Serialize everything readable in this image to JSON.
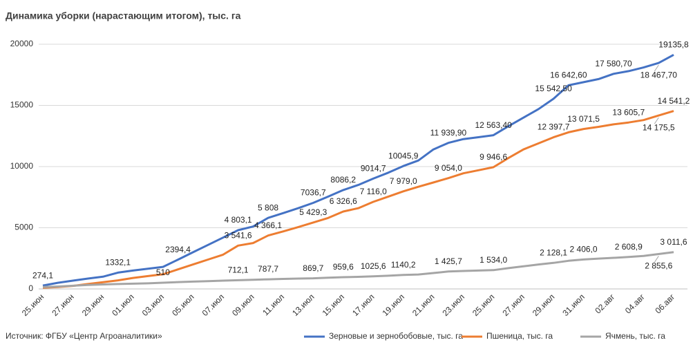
{
  "chart_data": {
    "type": "line",
    "title": "Динамика уборки (нарастающим итогом), тыс. га",
    "source": "Источник: ФГБУ «Центр Агроаналитики»",
    "categories": [
      "25.июн",
      null,
      "27.июн",
      null,
      "29.июн",
      null,
      "01.июл",
      null,
      "03.июл",
      null,
      "05.июл",
      null,
      "07.июл",
      null,
      "09.июл",
      null,
      "11.июл",
      null,
      "13.июл",
      null,
      "15.июл",
      null,
      "17.июл",
      null,
      "19.июл",
      null,
      "21.июл",
      null,
      "23.июл",
      null,
      "25.июл",
      null,
      "27.июл",
      null,
      "29.июл",
      null,
      "31.июл",
      null,
      "02.авг",
      null,
      "04.авг",
      null,
      "06.авг"
    ],
    "ylim": [
      0,
      20000
    ],
    "yticks": [
      0,
      5000,
      10000,
      15000,
      20000
    ],
    "grid": true,
    "legend": "bottom",
    "series": [
      {
        "name": "Зерновые и зернобобовые, тыс. га",
        "color": "#4472c4",
        "values": [
          274.1,
          500,
          680,
          850,
          1000,
          1332.1,
          1500,
          1650,
          1800,
          2394.4,
          3000,
          3600,
          4200,
          4803.1,
          5100,
          5808,
          6200,
          6600,
          7036.7,
          7550,
          8086.2,
          8500,
          9014.7,
          9500,
          10045.9,
          10500,
          11400,
          11939.9,
          12250,
          12400,
          12563.4,
          13300,
          14000,
          14700,
          15542.5,
          16642.6,
          16900,
          17150,
          17580.7,
          17800,
          18100,
          18467.7,
          19135.8
        ],
        "value_labels": [
          "274,1",
          null,
          null,
          null,
          null,
          "1332,1",
          null,
          null,
          null,
          "2394,4",
          null,
          null,
          null,
          "4 803,1",
          null,
          "5 808",
          null,
          null,
          "7036,7",
          null,
          "8086,2",
          null,
          "9014,7",
          null,
          "10045,9",
          null,
          null,
          "11 939,90",
          null,
          null,
          "12 563,40",
          null,
          null,
          null,
          "15 542,50",
          "16 642,60",
          null,
          null,
          "17 580,70",
          null,
          null,
          "18 467,70",
          "19135,8"
        ]
      },
      {
        "name": "Пшеница, тыс. га",
        "color": "#ed7d31",
        "values": [
          100,
          150,
          250,
          400,
          550,
          700,
          900,
          1050,
          1200,
          1600,
          2000,
          2400,
          2800,
          3541.6,
          3750,
          4366.1,
          4700,
          5050,
          5429.3,
          5800,
          6326.6,
          6600,
          7116.0,
          7550,
          7979.0,
          8350,
          8700,
          9054.0,
          9450,
          9700,
          9946.6,
          10700,
          11400,
          11900,
          12397.7,
          12800,
          13071.5,
          13250,
          13450,
          13605.7,
          13800,
          14175.5,
          14541.2
        ],
        "value_labels": [
          null,
          null,
          null,
          null,
          null,
          null,
          null,
          null,
          null,
          null,
          null,
          null,
          null,
          "3 541,6",
          null,
          "4 366,1",
          null,
          null,
          "5 429,3",
          null,
          "6 326,6",
          null,
          "7 116,0",
          null,
          "7 979,0",
          null,
          null,
          "9 054,0",
          null,
          null,
          "9 946,6",
          null,
          null,
          null,
          "12 397,7",
          null,
          "13 071,5",
          null,
          null,
          "13 605,7",
          null,
          "14 175,5",
          "14 541,2"
        ]
      },
      {
        "name": "Ячмень, тыс. га",
        "color": "#a5a5a5",
        "values": [
          150,
          200,
          260,
          320,
          370,
          400,
          430,
          460,
          510,
          560,
          600,
          640,
          680,
          712.1,
          750,
          787.7,
          820,
          845,
          869.7,
          920,
          959.6,
          990,
          1025.6,
          1080,
          1140.2,
          1180,
          1300,
          1425.7,
          1470,
          1500,
          1534.0,
          1700,
          1850,
          2000,
          2128.1,
          2300,
          2406.0,
          2480,
          2540,
          2608.9,
          2700,
          2855.6,
          3011.6
        ],
        "value_labels": [
          null,
          null,
          null,
          null,
          null,
          null,
          null,
          null,
          "510",
          null,
          null,
          null,
          null,
          "712,1",
          null,
          "787,7",
          null,
          null,
          "869,7",
          null,
          "959,6",
          null,
          "1025,6",
          null,
          "1140,2",
          null,
          null,
          "1 425,7",
          null,
          null,
          "1 534,0",
          null,
          null,
          null,
          "2 128,1",
          null,
          "2 406,0",
          null,
          null,
          "2 608,9",
          null,
          "2 855,6",
          "3 011,6"
        ]
      }
    ]
  }
}
